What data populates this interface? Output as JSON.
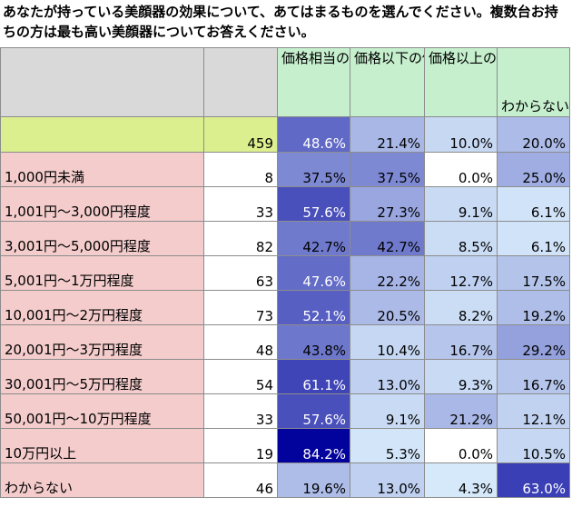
{
  "title": "あなたが持っている美顔器の効果について、あてはまるものを選んでください。複数台お持ちの方は最も高い美顔器についてお答えください。",
  "columns": [
    "価格相当の価値がある",
    "価格以下の価値しかない",
    "価格以上の価値がある",
    "わからない"
  ],
  "colors": {
    "header_blank": "#d9d9d9",
    "header_option": "#c6efce",
    "total_row": "#dcef8f",
    "category": "#f4cccc"
  },
  "total": {
    "label": "",
    "n": "459",
    "values": [
      "48.6%",
      "21.4%",
      "10.0%",
      "20.0%"
    ]
  },
  "rows": [
    {
      "label": "1,000円未満",
      "n": "8",
      "values": [
        "37.5%",
        "37.5%",
        "0.0%",
        "25.0%"
      ]
    },
    {
      "label": "1,001円～3,000円程度",
      "n": "33",
      "values": [
        "57.6%",
        "27.3%",
        "9.1%",
        "6.1%"
      ]
    },
    {
      "label": "3,001円～5,000円程度",
      "n": "82",
      "values": [
        "42.7%",
        "42.7%",
        "8.5%",
        "6.1%"
      ]
    },
    {
      "label": "5,001円～1万円程度",
      "n": "63",
      "values": [
        "47.6%",
        "22.2%",
        "12.7%",
        "17.5%"
      ]
    },
    {
      "label": "10,001円～2万円程度",
      "n": "73",
      "values": [
        "52.1%",
        "20.5%",
        "8.2%",
        "19.2%"
      ]
    },
    {
      "label": "20,001円～3万円程度",
      "n": "48",
      "values": [
        "43.8%",
        "10.4%",
        "16.7%",
        "29.2%"
      ]
    },
    {
      "label": "30,001円～5万円程度",
      "n": "54",
      "values": [
        "61.1%",
        "13.0%",
        "9.3%",
        "16.7%"
      ]
    },
    {
      "label": "50,001円～10万円程度",
      "n": "33",
      "values": [
        "57.6%",
        "9.1%",
        "21.2%",
        "12.1%"
      ]
    },
    {
      "label": "10万円以上",
      "n": "19",
      "values": [
        "84.2%",
        "5.3%",
        "0.0%",
        "10.5%"
      ]
    },
    {
      "label": "わからない",
      "n": "46",
      "values": [
        "19.6%",
        "13.0%",
        "4.3%",
        "63.0%"
      ]
    }
  ]
}
